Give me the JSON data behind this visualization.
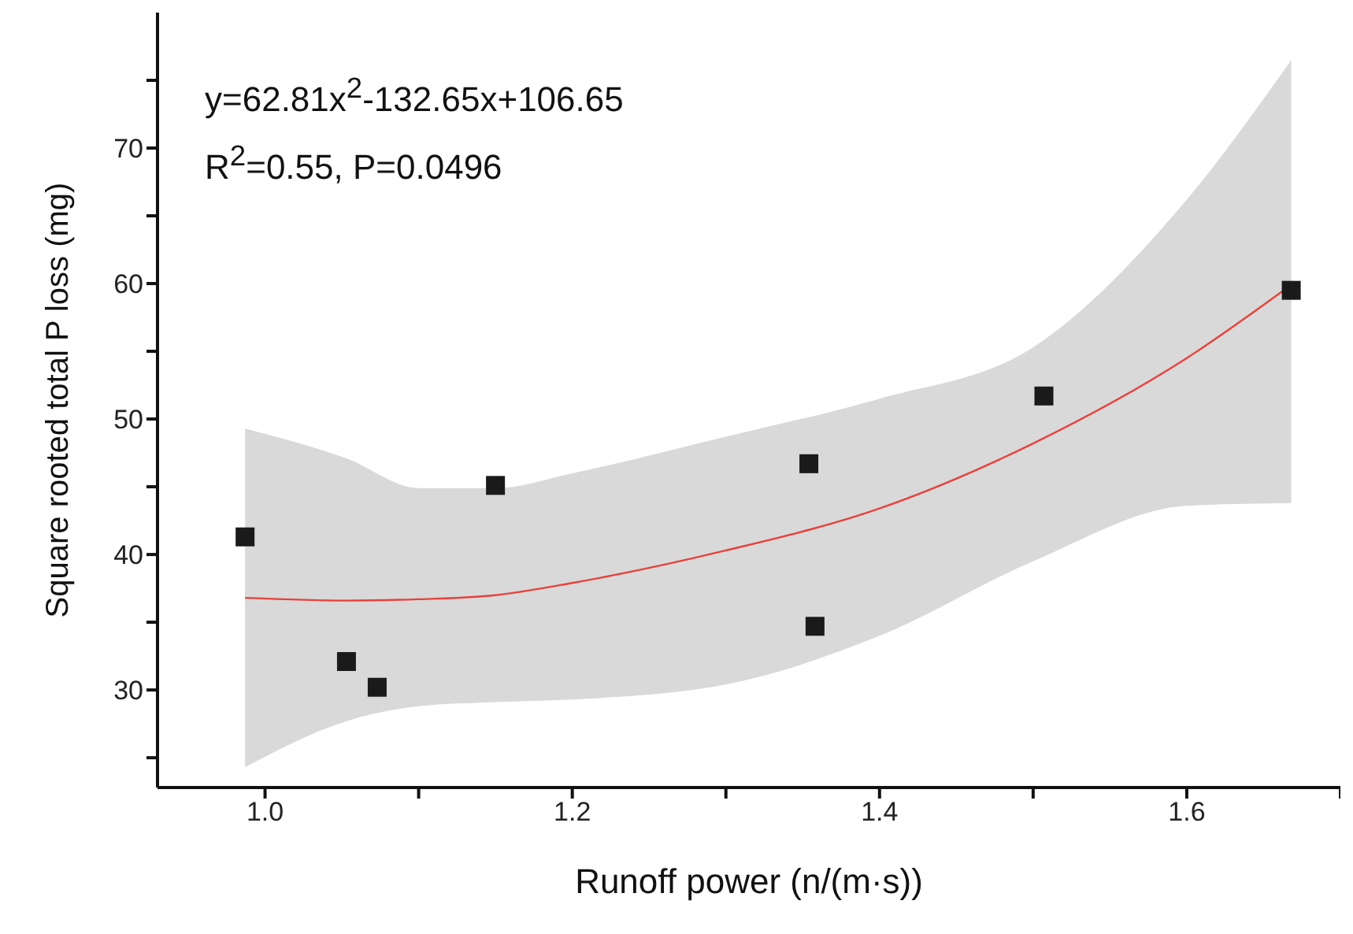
{
  "chart_data": {
    "type": "scatter",
    "xlabel": "Runoff power (n/(m·s))",
    "ylabel": "Square rooted total P loss (mg)",
    "annotations": [
      "y=62.81x$^{2}$-132.65x+106.65",
      "R$^{2}$=0.55, P=0.0496"
    ],
    "xlim": [
      0.93,
      1.7
    ],
    "ylim": [
      22.8,
      80
    ],
    "xticks": [
      {
        "value": 1,
        "label": "1.0"
      },
      {
        "value": 1.1,
        "label": null
      },
      {
        "value": 1.2,
        "label": "1.2"
      },
      {
        "value": 1.3,
        "label": null
      },
      {
        "value": 1.4,
        "label": "1.4"
      },
      {
        "value": 1.5,
        "label": null
      },
      {
        "value": 1.6,
        "label": "1.6"
      },
      {
        "value": 1.7,
        "label": null
      }
    ],
    "yticks": [
      {
        "value": 25,
        "label": null
      },
      30,
      {
        "value": 35,
        "label": null
      },
      40,
      {
        "value": 45,
        "label": null
      },
      50,
      {
        "value": 55,
        "label": null
      },
      60,
      {
        "value": 65,
        "label": null
      },
      70,
      {
        "value": 75,
        "label": null
      }
    ],
    "grid": false,
    "legend": false,
    "series": [
      {
        "type": "line",
        "color": "#e8413c",
        "x": [
          0.987,
          1.053,
          1.1,
          1.15,
          1.2,
          1.3,
          1.4,
          1.5,
          1.6,
          1.668
        ],
        "values": [
          36.8,
          36.6,
          36.7,
          37.0,
          37.9,
          40.3,
          43.4,
          48.2,
          54.5,
          59.9
        ],
        "lower": [
          24.3,
          27.7,
          28.8,
          29.1,
          29.3,
          30.4,
          34.0,
          39.5,
          43.6,
          43.8
        ],
        "upper": [
          49.3,
          47.1,
          44.9,
          44.9,
          46.0,
          48.7,
          51.5,
          55.3,
          66.2,
          76.5
        ],
        "marker": "none"
      },
      {
        "marker": "square",
        "color": "#1a1a1a",
        "x": [
          0.987,
          1.053,
          1.073,
          1.15,
          1.354,
          1.358,
          1.507,
          1.668
        ],
        "values": [
          41.3,
          32.1,
          30.2,
          45.1,
          46.7,
          34.7,
          51.7,
          59.5
        ]
      }
    ]
  }
}
